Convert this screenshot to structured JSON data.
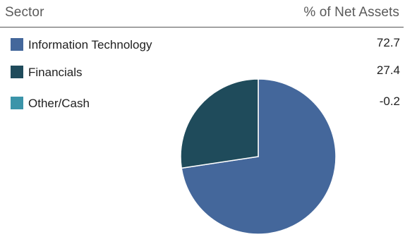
{
  "chart_data": {
    "type": "pie",
    "header": {
      "sector_label": "Sector",
      "value_label": "% of Net Assets"
    },
    "slices": [
      {
        "label": "Information Technology",
        "value": 72.7,
        "display": "72.7",
        "color": "#44679b"
      },
      {
        "label": "Financials",
        "value": 27.4,
        "display": "27.4",
        "color": "#1f4b5b"
      },
      {
        "label": "Other/Cash",
        "value": -0.2,
        "display": "-0.2",
        "color": "#3b94a9"
      }
    ],
    "legend_position": "left"
  }
}
